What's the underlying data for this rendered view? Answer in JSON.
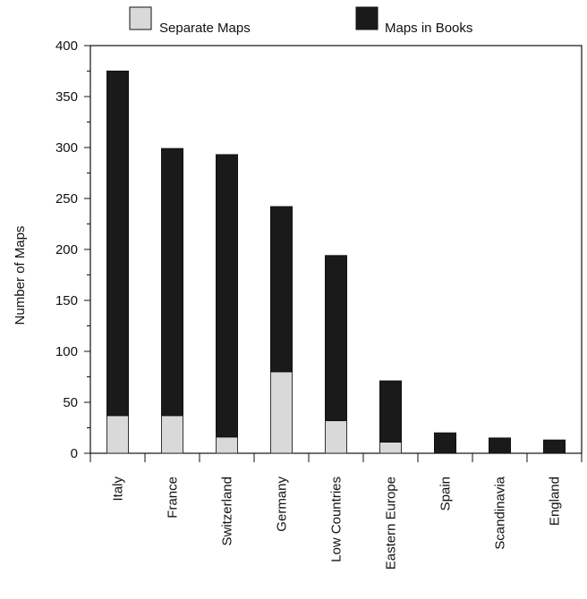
{
  "chart_data": {
    "type": "bar",
    "stacked": true,
    "categories": [
      "Italy",
      "France",
      "Switzerland",
      "Germany",
      "Low Countries",
      "Eastern Europe",
      "Spain",
      "Scandinavia",
      "England"
    ],
    "series": [
      {
        "name": "Separate Maps",
        "color": "#d9d9d9",
        "values": [
          37,
          37,
          16,
          80,
          32,
          11,
          0,
          0,
          0
        ]
      },
      {
        "name": "Maps in Books",
        "color": "#1a1a1a",
        "values": [
          338,
          262,
          277,
          162,
          162,
          60,
          20,
          15,
          13
        ]
      }
    ],
    "totals": [
      375,
      299,
      293,
      242,
      194,
      71,
      20,
      15,
      13
    ],
    "ylabel": "Number of Maps",
    "xlabel": "",
    "ylim": [
      0,
      400
    ],
    "yticks": [
      0,
      50,
      100,
      150,
      200,
      250,
      300,
      350,
      400
    ],
    "grid": false,
    "legend_position": "top"
  }
}
